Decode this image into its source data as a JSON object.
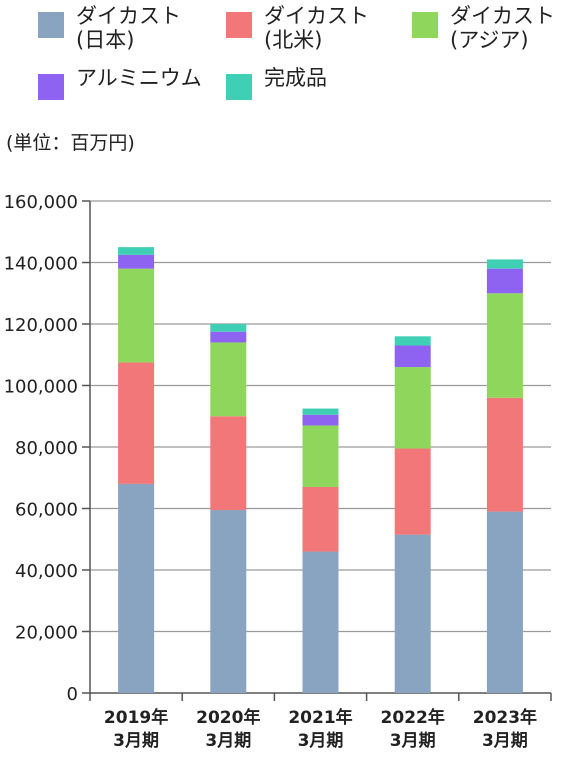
{
  "unit_label": "(単位：百万円)",
  "legend": [
    {
      "lines": [
        "ダイカスト",
        "(日本)"
      ],
      "color": "#88a4c0",
      "icon": "legend-swatch"
    },
    {
      "lines": [
        "ダイカスト",
        "(北米)"
      ],
      "color": "#f27778",
      "icon": "legend-swatch"
    },
    {
      "lines": [
        "ダイカスト",
        "(アジア)"
      ],
      "color": "#8fd65c",
      "icon": "legend-swatch"
    },
    {
      "lines": [
        "アルミニウム"
      ],
      "color": "#8f63f2",
      "icon": "legend-swatch"
    },
    {
      "lines": [
        "完成品"
      ],
      "color": "#3ecfb4",
      "icon": "legend-swatch"
    }
  ],
  "chart_data": {
    "type": "bar",
    "stacked": true,
    "categories": [
      [
        "2019年",
        "3月期"
      ],
      [
        "2020年",
        "3月期"
      ],
      [
        "2021年",
        "3月期"
      ],
      [
        "2022年",
        "3月期"
      ],
      [
        "2023年",
        "3月期"
      ]
    ],
    "series": [
      {
        "name": "ダイカスト(日本)",
        "color": "#88a4c0",
        "values": [
          68000,
          59500,
          46000,
          51500,
          59000
        ]
      },
      {
        "name": "ダイカスト(北米)",
        "color": "#f27778",
        "values": [
          39500,
          30500,
          21000,
          28000,
          37000
        ]
      },
      {
        "name": "ダイカスト(アジア)",
        "color": "#8fd65c",
        "values": [
          30500,
          24000,
          20000,
          26500,
          34000
        ]
      },
      {
        "name": "アルミニウム",
        "color": "#8f63f2",
        "values": [
          4500,
          3500,
          3500,
          7000,
          8000
        ]
      },
      {
        "name": "完成品",
        "color": "#3ecfb4",
        "values": [
          2500,
          2500,
          2000,
          3000,
          3000
        ]
      }
    ],
    "y_ticks": [
      "0",
      "20,000",
      "40,000",
      "60,000",
      "80,000",
      "100,000",
      "120,000",
      "140,000",
      "160,000"
    ],
    "ylim": [
      0,
      160000
    ],
    "ylabel": "(単位：百万円)",
    "grid": true,
    "legend_position": "top"
  }
}
